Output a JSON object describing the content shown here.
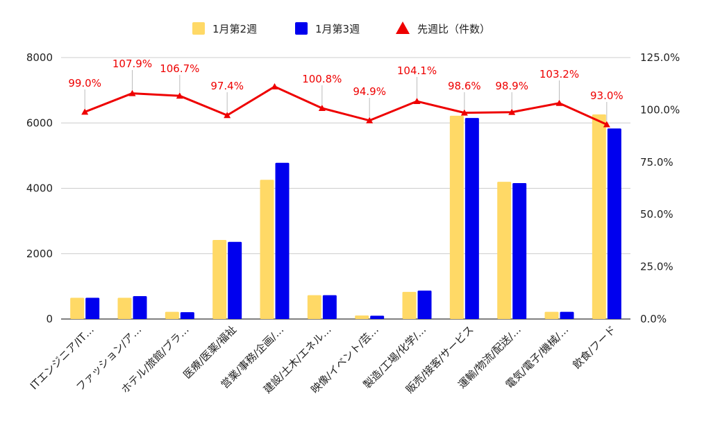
{
  "chart_data": {
    "type": "bar",
    "categories": [
      "ITエンジニア/IT…",
      "ファッション/ア…",
      "ホテル/旅館/ブラ…",
      "医療/医薬/福祉",
      "営業/事務/企画/…",
      "建設/土木/エネル…",
      "映像/イベント/芸…",
      "製造/工場/化学/…",
      "販売/接客/サービス",
      "運輸/物流/配送/…",
      "電気/電子/機械/…",
      "飲食/フード"
    ],
    "series": [
      {
        "name": "1月第2週",
        "type": "bar",
        "axis": "left",
        "color": "#FFD966",
        "values": [
          650,
          650,
          220,
          2420,
          4260,
          730,
          110,
          830,
          6220,
          4200,
          220,
          6260
        ]
      },
      {
        "name": "1月第3週",
        "type": "bar",
        "axis": "left",
        "color": "#0000EE",
        "values": [
          650,
          700,
          210,
          2360,
          4780,
          730,
          100,
          870,
          6150,
          4160,
          220,
          5830
        ]
      },
      {
        "name": "先週比（件数）",
        "type": "line",
        "axis": "right",
        "color": "#EE0000",
        "marker": "triangle",
        "values": [
          99.0,
          107.9,
          106.7,
          97.4,
          111.1,
          100.8,
          94.9,
          104.1,
          98.6,
          98.9,
          103.2,
          93.0
        ],
        "labels": [
          "99.0%",
          "107.9%",
          "106.7%",
          "97.4%",
          "",
          "100.8%",
          "94.9%",
          "104.1%",
          "98.6%",
          "98.9%",
          "103.2%",
          "93.0%"
        ]
      }
    ],
    "y_left": {
      "min": 0,
      "max": 8000,
      "ticks": [
        "0",
        "2000",
        "4000",
        "6000",
        "8000"
      ]
    },
    "y_right": {
      "min": 0,
      "max": 125,
      "ticks": [
        "0.0%",
        "25.0%",
        "50.0%",
        "75.0%",
        "100.0%",
        "125.0%"
      ]
    },
    "legend": {
      "position": "top"
    },
    "title": "",
    "xlabel": "",
    "ylabel": ""
  }
}
